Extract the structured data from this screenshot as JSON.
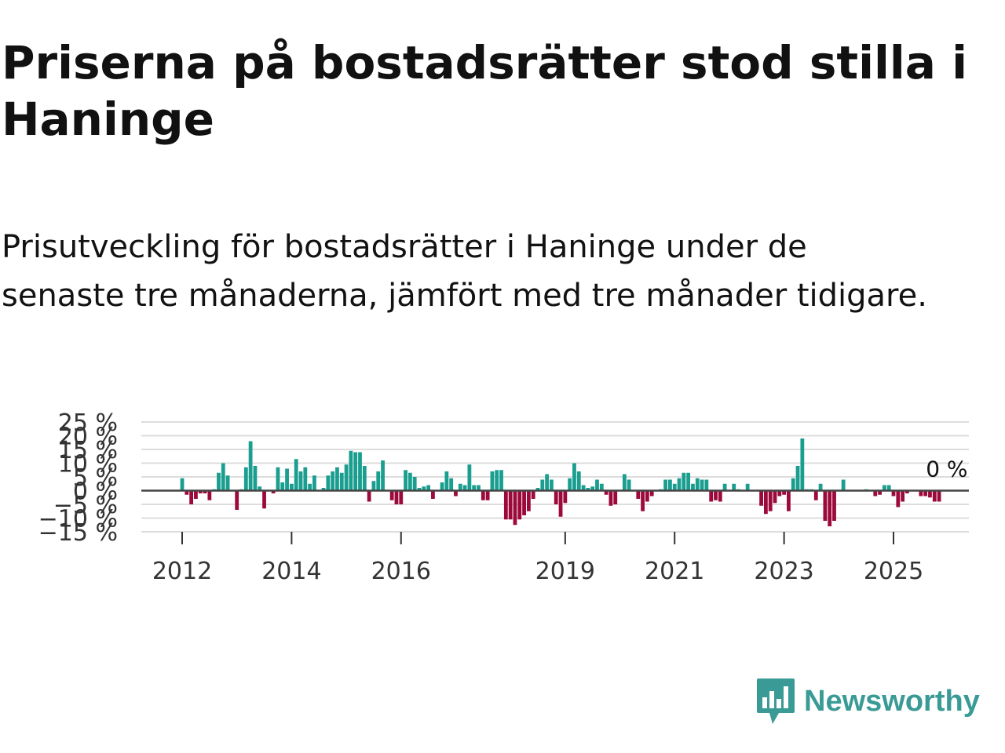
{
  "title": "Priserna på bostadsrätter stod stilla i Haninge",
  "subtitle": "Prisutveckling för bostadsrätter i Haninge under de senaste tre månaderna, jämfört med tre månader tidigare.",
  "logo_text": "Newsworthy",
  "colors": {
    "positive": "#1a9e8f",
    "negative": "#9c0a3c",
    "grid": "#dddddd",
    "zero": "#444444",
    "brand": "#3a9b96"
  },
  "chart_data": {
    "type": "bar",
    "title": "Priserna på bostadsrätter stod stilla i Haninge",
    "xlabel": "",
    "ylabel": "",
    "ylim": [
      -15,
      25
    ],
    "y_ticks": [
      25,
      20,
      15,
      10,
      5,
      0,
      -5,
      -10,
      -15
    ],
    "y_tick_labels": [
      "25 %",
      "20 %",
      "15 %",
      "10 %",
      "5 %",
      "0 %",
      "−5 %",
      "−10 %",
      "−15 %"
    ],
    "x_ticks": [
      2012,
      2014,
      2016,
      2019,
      2021,
      2023,
      2025
    ],
    "x_tick_labels": [
      "2012",
      "2014",
      "2016",
      "2019",
      "2021",
      "2023",
      "2025"
    ],
    "start": "2012-01",
    "interval": "month",
    "last_value_label": "0 %",
    "values": [
      4.5,
      -1.5,
      -5,
      -3,
      -1,
      -1,
      -3.5,
      0.5,
      6.5,
      10,
      5.5,
      0,
      -7,
      0.5,
      8.5,
      18,
      9,
      1.5,
      -6.5,
      0,
      -1,
      8.5,
      3,
      8,
      2.5,
      11.5,
      7,
      8.5,
      2.5,
      5.5,
      0,
      1,
      5.5,
      7,
      8.5,
      6.5,
      9.5,
      14.5,
      14,
      14,
      9,
      -4,
      3.5,
      7,
      11,
      0,
      -3.5,
      -5,
      -5,
      7.5,
      6.5,
      5,
      1,
      1.5,
      2,
      -3,
      0,
      3,
      7,
      4.5,
      -2,
      2.5,
      2,
      9.5,
      2,
      2,
      -3.5,
      -3.5,
      7,
      7.5,
      7.5,
      -10.5,
      -10.5,
      -12.5,
      -10.5,
      -9,
      -7.5,
      -3,
      1,
      4,
      6,
      4,
      -5,
      -9.5,
      -4.5,
      4.5,
      10,
      7,
      2,
      1,
      1.5,
      4,
      2.5,
      -1.5,
      -5.5,
      -5,
      0,
      6,
      4,
      0,
      -3,
      -7.5,
      -4,
      -2,
      0,
      0.5,
      4,
      4,
      2.5,
      4.5,
      6.5,
      6.5,
      2.5,
      4.5,
      4,
      4,
      -4,
      -3.5,
      -4,
      2.5,
      0,
      2.5,
      0.5,
      0,
      2.5,
      0,
      0,
      -5.5,
      -8.5,
      -7.5,
      -4.5,
      -2,
      -1.5,
      -7.5,
      4.5,
      9,
      19,
      0.5,
      0.5,
      -3.5,
      2.5,
      -11,
      -13,
      -11,
      0,
      4,
      0,
      0,
      0,
      0,
      0.5,
      0,
      -2,
      -1.5,
      2,
      2,
      -2,
      -6,
      -4,
      -1,
      0,
      0,
      -2,
      -2,
      -2.5,
      -4,
      -4,
      0
    ]
  }
}
